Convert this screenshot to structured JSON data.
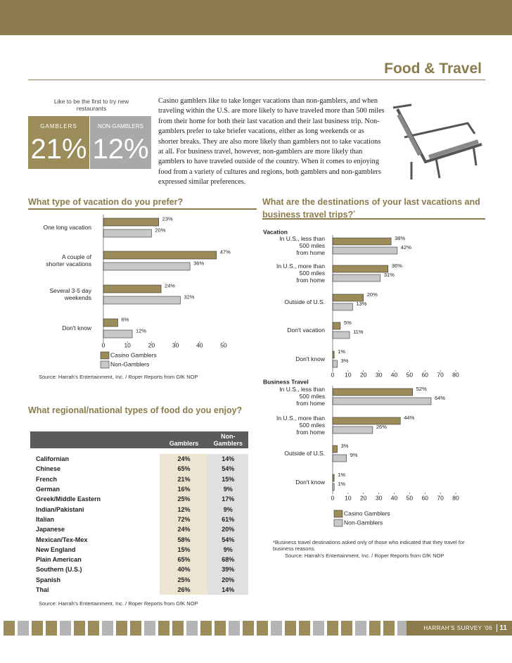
{
  "header": {
    "title": "Food & Travel"
  },
  "highlight": {
    "caption": "Like to be the first to try new restaurants",
    "groups": [
      {
        "label": "GAMBLERS",
        "value": "21%"
      },
      {
        "label": "NON-GAMBLERS",
        "value": "12%"
      }
    ]
  },
  "intro": "Casino gamblers like to take longer vacations than non-gamblers, and when traveling within the U.S. are more likely to have traveled more than 500 miles from their home for both their last vacation and their last business trip. Non-gamblers prefer to take briefer vacations, either as long weekends or as shorter breaks. They are also more likely than gamblers not to take vacations at all. For business travel, however, non-gamblers are more likely than gamblers to have traveled outside of the country. When it comes to enjoying food from a variety of cultures and regions, both gamblers and non-gamblers expressed similar preferences.",
  "vacation_type": {
    "type": "bar",
    "title": "What type of vacation do you prefer?",
    "categories": [
      [
        "One long vacation"
      ],
      [
        "A couple of",
        "shorter vacations"
      ],
      [
        "Several 3-5 day",
        "weekends"
      ],
      [
        "Don't know"
      ]
    ],
    "series": [
      {
        "name": "Casino Gamblers",
        "color": "#9b8c5a",
        "values": [
          23,
          47,
          24,
          6
        ],
        "value_labels": [
          "23%",
          "47%",
          "24%",
          "6%"
        ]
      },
      {
        "name": "Non-Gamblers",
        "color": "#c8c8c8",
        "values": [
          20,
          36,
          32,
          12
        ],
        "value_labels": [
          "20%",
          "36%",
          "32%",
          "12%"
        ]
      }
    ],
    "xlim": [
      0,
      50
    ],
    "xticks": [
      0,
      10,
      20,
      30,
      40,
      50
    ],
    "source": "Source: Harrah's Entertainment, Inc. / Roper Reports from GfK NOP"
  },
  "food": {
    "title": "What regional/national types of food do you enjoy?",
    "columns": [
      "Gamblers",
      "Non-Gamblers"
    ],
    "rows": [
      [
        "Californian",
        "24%",
        "14%"
      ],
      [
        "Chinese",
        "65%",
        "54%"
      ],
      [
        "French",
        "21%",
        "15%"
      ],
      [
        "German",
        "16%",
        "9%"
      ],
      [
        "Greek/Middle Eastern",
        "25%",
        "17%"
      ],
      [
        "Indian/Pakistani",
        "12%",
        "9%"
      ],
      [
        "Italian",
        "72%",
        "61%"
      ],
      [
        "Japanese",
        "24%",
        "20%"
      ],
      [
        "Mexican/Tex-Mex",
        "58%",
        "54%"
      ],
      [
        "New England",
        "15%",
        "9%"
      ],
      [
        "Plain American",
        "65%",
        "68%"
      ],
      [
        "Southern (U.S.)",
        "40%",
        "39%"
      ],
      [
        "Spanish",
        "25%",
        "20%"
      ],
      [
        "Thai",
        "26%",
        "14%"
      ]
    ],
    "source": "Source: Harrah's Entertainment, Inc. / Roper Reports from GfK NOP"
  },
  "destinations": {
    "type": "bar",
    "title": "What are the destinations of your last vacations and business travel trips?",
    "title_marker": "*",
    "series": [
      {
        "name": "Casino Gamblers",
        "color": "#9b8c5a"
      },
      {
        "name": "Non-Gamblers",
        "color": "#c8c8c8"
      }
    ],
    "groups": [
      {
        "label": "Vacation",
        "categories": [
          [
            "In U.S., less than",
            "500 miles",
            "from home"
          ],
          [
            "In U.S., more than",
            "500 miles",
            "from home"
          ],
          [
            "Outside of U.S."
          ],
          [
            "Don't vacation"
          ],
          [
            "Don't know"
          ]
        ],
        "series": [
          {
            "values": [
              38,
              36,
              20,
              5,
              1
            ],
            "value_labels": [
              "38%",
              "36%",
              "20%",
              "5%",
              "1%"
            ]
          },
          {
            "values": [
              42,
              31,
              13,
              11,
              3
            ],
            "value_labels": [
              "42%",
              "31%",
              "13%",
              "11%",
              "3%"
            ]
          }
        ]
      },
      {
        "label": "Business Travel",
        "categories": [
          [
            "In U.S., less than",
            "500 miles",
            "from home"
          ],
          [
            "In U.S., more than",
            "500 miles",
            "from home"
          ],
          [
            "Outside of U.S."
          ],
          [
            "Don't know"
          ]
        ],
        "series": [
          {
            "values": [
              52,
              44,
              3,
              1
            ],
            "value_labels": [
              "52%",
              "44%",
              "3%",
              "1%"
            ]
          },
          {
            "values": [
              64,
              26,
              9,
              1
            ],
            "value_labels": [
              "64%",
              "26%",
              "9%",
              "1%"
            ]
          }
        ]
      }
    ],
    "xlim": [
      0,
      80
    ],
    "xticks": [
      0,
      10,
      20,
      30,
      40,
      50,
      60,
      70,
      80
    ],
    "footnote": "*Business travel destinations asked only of those who indicated that they travel for business reasons.",
    "source": "Source: Harrah's Entertainment, Inc. / Roper Reports from GfK NOP"
  },
  "footer": {
    "label": "HARRAH'S SURVEY '06",
    "page": "11"
  }
}
